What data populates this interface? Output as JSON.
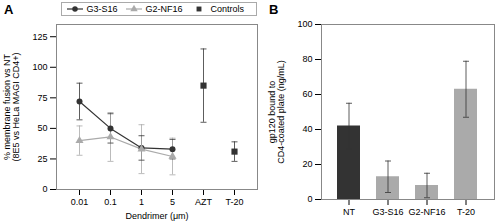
{
  "chart_data": [
    {
      "type": "line",
      "title": "A",
      "categories": [
        "0.01",
        "0.1",
        "1",
        "5",
        "AZT",
        "T-20"
      ],
      "series": [
        {
          "name": "G3-S16",
          "color": "#333333",
          "marker": "circle",
          "values": [
            72,
            50,
            34,
            33,
            null,
            null
          ],
          "errors": [
            15,
            12,
            10,
            8,
            null,
            null
          ]
        },
        {
          "name": "G2-NF16",
          "color": "#aaaaaa",
          "marker": "triangle",
          "values": [
            40,
            43,
            33,
            27,
            null,
            null
          ],
          "errors": [
            12,
            20,
            20,
            15,
            null,
            null
          ]
        },
        {
          "name": "Controls",
          "type": "scatter",
          "color": "#333333",
          "marker": "square",
          "values": [
            null,
            null,
            null,
            null,
            85,
            31
          ],
          "errors": [
            null,
            null,
            null,
            null,
            30,
            8
          ]
        }
      ],
      "xlabel": "Dendrimer (μm)",
      "ylabel": "% membrane fusion vs NT\n(8E5 vs HeLa MAGI CD4+)",
      "ylim": [
        0,
        135
      ],
      "yticks": [
        0,
        25,
        50,
        75,
        100,
        125
      ],
      "legend": "top"
    },
    {
      "type": "bar",
      "title": "B",
      "categories": [
        "NT",
        "G3-S16",
        "G2-NF16",
        "T-20"
      ],
      "values": [
        42,
        13,
        8,
        63
      ],
      "errors": [
        13,
        9,
        7,
        16
      ],
      "colors": [
        "#333333",
        "#aaaaaa",
        "#aaaaaa",
        "#aaaaaa"
      ],
      "ylabel": "gp120 bound to\nCD4-coated plate (ng/mL)",
      "ylim": [
        0,
        100
      ],
      "yticks": [
        0,
        20,
        40,
        60,
        80,
        100
      ]
    }
  ]
}
